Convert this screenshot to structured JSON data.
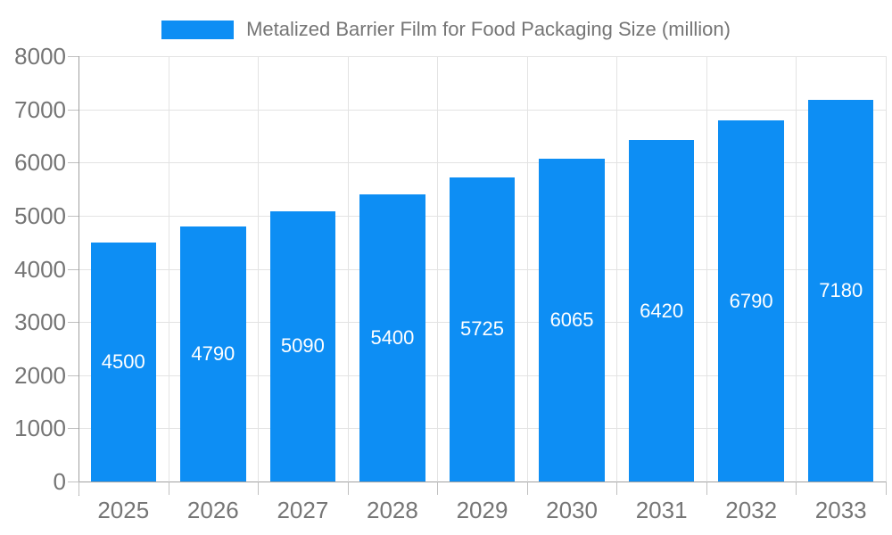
{
  "legend": {
    "label": "Metalized Barrier Film for Food Packaging Size (million)"
  },
  "colors": {
    "bar": "#0d8ef4",
    "bar_label": "#ffffff",
    "axis_text": "#757575",
    "grid": "#e3e3e3",
    "axis_line": "#a0a0a0",
    "tick": "#c0c0c0",
    "background": "#ffffff"
  },
  "chart_data": {
    "type": "bar",
    "title": "",
    "xlabel": "",
    "ylabel": "",
    "categories": [
      "2025",
      "2026",
      "2027",
      "2028",
      "2029",
      "2030",
      "2031",
      "2032",
      "2033"
    ],
    "values": [
      4500,
      4790,
      5090,
      5400,
      5725,
      6065,
      6420,
      6790,
      7180
    ],
    "series_name": "Metalized Barrier Film for Food Packaging Size (million)",
    "ylim": [
      0,
      8000
    ],
    "yticks": [
      0,
      1000,
      2000,
      3000,
      4000,
      5000,
      6000,
      7000,
      8000
    ],
    "grid": true,
    "legend_position": "top-center",
    "bar_label_position": "inside-center"
  }
}
